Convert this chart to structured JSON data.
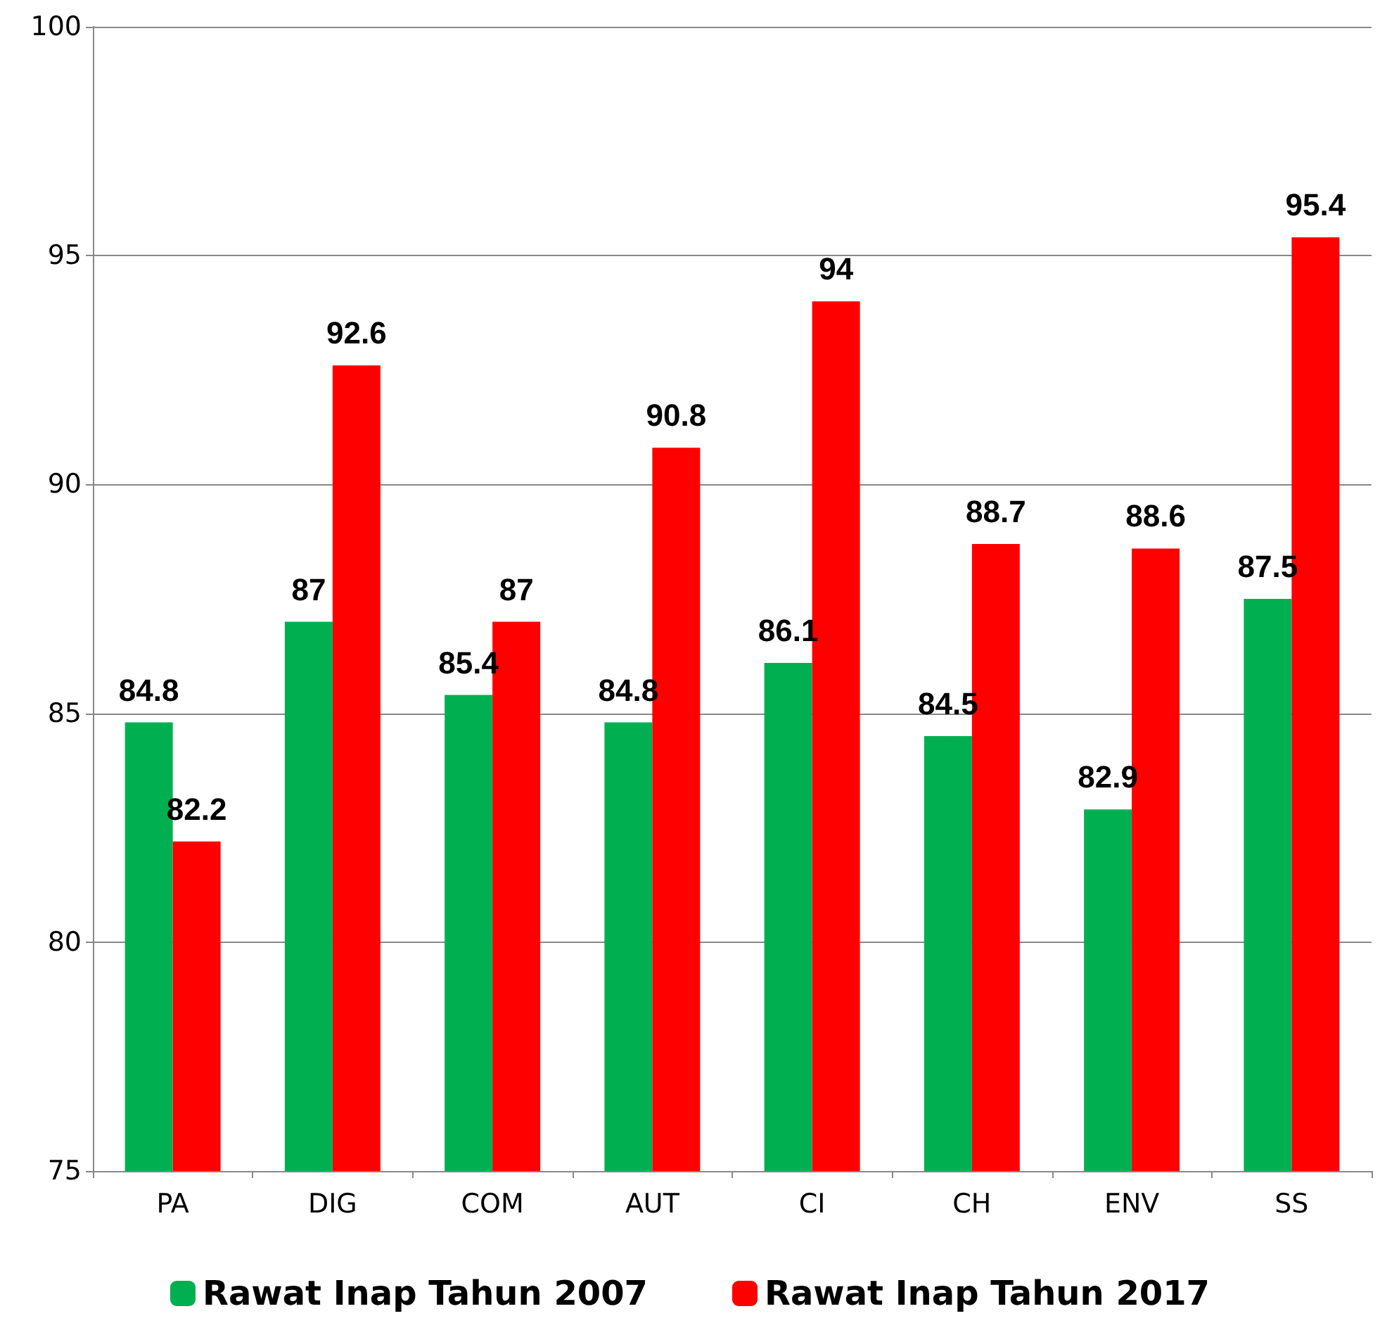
{
  "chart_data": {
    "type": "bar",
    "categories": [
      "PA",
      "DIG",
      "COM",
      "AUT",
      "CI",
      "CH",
      "ENV",
      "SS"
    ],
    "series": [
      {
        "name": "Rawat Inap Tahun 2007",
        "color": "#00b050",
        "values": [
          84.8,
          87,
          85.4,
          84.8,
          86.1,
          84.5,
          82.9,
          87.5
        ]
      },
      {
        "name": "Rawat Inap Tahun 2017",
        "color": "#ff0000",
        "values": [
          82.2,
          92.6,
          87,
          90.8,
          94,
          88.7,
          88.6,
          95.4
        ]
      }
    ],
    "ylim": [
      75,
      100
    ],
    "yticks": [
      75,
      80,
      85,
      90,
      95,
      100
    ],
    "grid": "y",
    "legend": "bottom",
    "data_labels": true
  }
}
